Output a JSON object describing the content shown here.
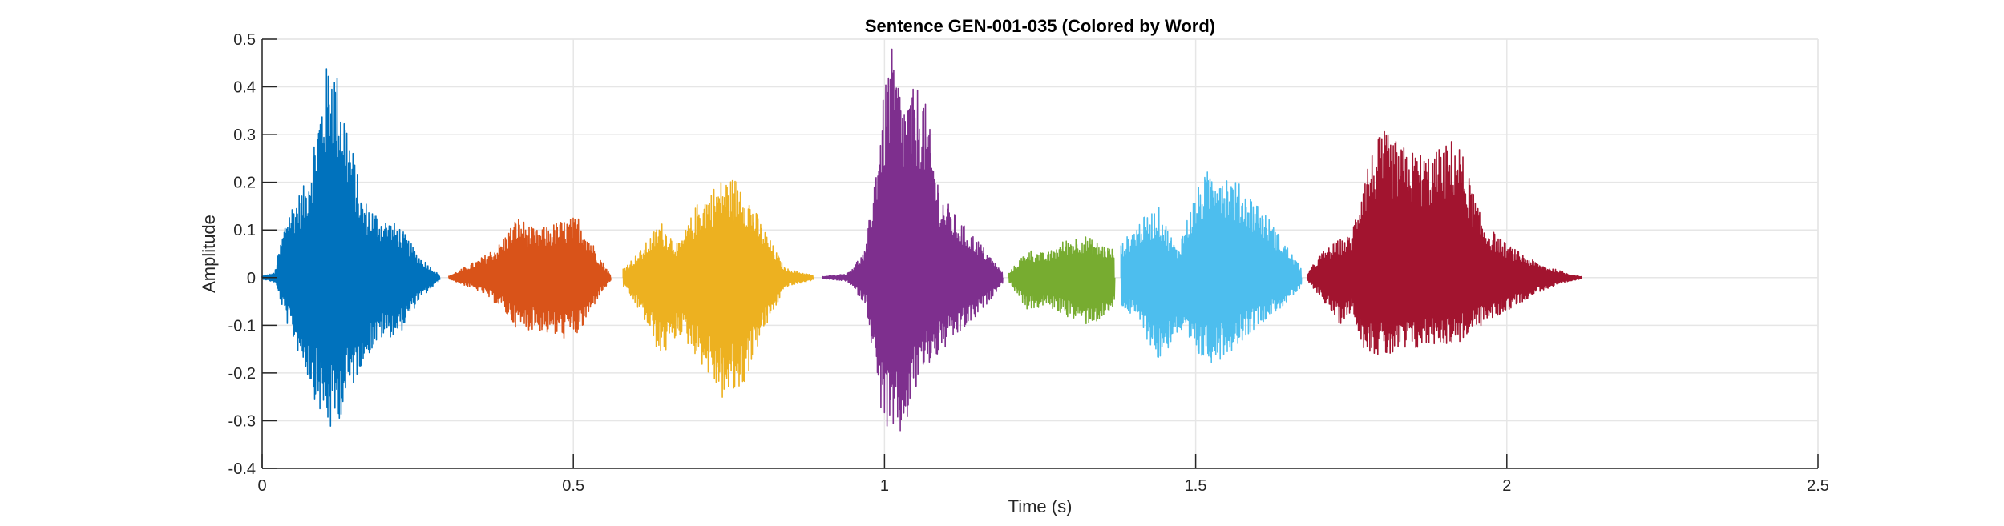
{
  "chart_data": {
    "type": "line",
    "title": "Sentence GEN-001-035 (Colored by Word)",
    "xlabel": "Time (s)",
    "ylabel": "Amplitude",
    "xlim": [
      0,
      2.5
    ],
    "ylim": [
      -0.4,
      0.5
    ],
    "xticks": [
      0,
      0.5,
      1,
      1.5,
      2,
      2.5
    ],
    "xtick_labels": [
      "0",
      "0.5",
      "1",
      "1.5",
      "2",
      "2.5"
    ],
    "yticks": [
      -0.4,
      -0.3,
      -0.2,
      -0.1,
      0,
      0.1,
      0.2,
      0.3,
      0.4,
      0.5
    ],
    "ytick_labels": [
      "-0.4",
      "-0.3",
      "-0.2",
      "-0.1",
      "0",
      "0.1",
      "0.2",
      "0.3",
      "0.4",
      "0.5"
    ],
    "grid": true,
    "series": [
      {
        "color": "#0072BD",
        "x_range": [
          0.0,
          0.285
        ],
        "envelope": [
          [
            0.0,
            0.003,
            -0.003
          ],
          [
            0.02,
            0.01,
            -0.01
          ],
          [
            0.04,
            0.14,
            -0.1
          ],
          [
            0.07,
            0.2,
            -0.2
          ],
          [
            0.09,
            0.35,
            -0.28
          ],
          [
            0.11,
            0.49,
            -0.33
          ],
          [
            0.13,
            0.38,
            -0.28
          ],
          [
            0.16,
            0.17,
            -0.18
          ],
          [
            0.19,
            0.13,
            -0.13
          ],
          [
            0.22,
            0.11,
            -0.12
          ],
          [
            0.25,
            0.05,
            -0.05
          ],
          [
            0.285,
            0.005,
            -0.005
          ]
        ]
      },
      {
        "color": "#D95319",
        "x_range": [
          0.3,
          0.56
        ],
        "envelope": [
          [
            0.3,
            0.003,
            -0.003
          ],
          [
            0.35,
            0.04,
            -0.03
          ],
          [
            0.38,
            0.07,
            -0.06
          ],
          [
            0.41,
            0.13,
            -0.11
          ],
          [
            0.44,
            0.1,
            -0.11
          ],
          [
            0.48,
            0.12,
            -0.13
          ],
          [
            0.51,
            0.13,
            -0.12
          ],
          [
            0.54,
            0.05,
            -0.04
          ],
          [
            0.56,
            0.005,
            -0.005
          ]
        ]
      },
      {
        "color": "#EDB120",
        "x_range": [
          0.58,
          0.885
        ],
        "envelope": [
          [
            0.58,
            0.02,
            -0.02
          ],
          [
            0.61,
            0.06,
            -0.08
          ],
          [
            0.64,
            0.12,
            -0.17
          ],
          [
            0.67,
            0.07,
            -0.12
          ],
          [
            0.7,
            0.16,
            -0.17
          ],
          [
            0.74,
            0.21,
            -0.26
          ],
          [
            0.77,
            0.21,
            -0.24
          ],
          [
            0.8,
            0.12,
            -0.13
          ],
          [
            0.84,
            0.02,
            -0.02
          ],
          [
            0.885,
            0.005,
            -0.005
          ]
        ]
      },
      {
        "color": "#7E2F8E",
        "x_range": [
          0.9,
          1.19
        ],
        "envelope": [
          [
            0.9,
            0.002,
            -0.002
          ],
          [
            0.94,
            0.008,
            -0.008
          ],
          [
            0.97,
            0.06,
            -0.06
          ],
          [
            0.99,
            0.3,
            -0.26
          ],
          [
            1.01,
            0.49,
            -0.36
          ],
          [
            1.03,
            0.38,
            -0.33
          ],
          [
            1.06,
            0.41,
            -0.2
          ],
          [
            1.09,
            0.18,
            -0.16
          ],
          [
            1.12,
            0.12,
            -0.12
          ],
          [
            1.15,
            0.08,
            -0.08
          ],
          [
            1.19,
            0.01,
            -0.01
          ]
        ]
      },
      {
        "color": "#77AC30",
        "x_range": [
          1.2,
          1.37
        ],
        "envelope": [
          [
            1.2,
            0.01,
            -0.01
          ],
          [
            1.23,
            0.06,
            -0.07
          ],
          [
            1.26,
            0.05,
            -0.06
          ],
          [
            1.29,
            0.08,
            -0.08
          ],
          [
            1.32,
            0.09,
            -0.1
          ],
          [
            1.35,
            0.07,
            -0.09
          ],
          [
            1.37,
            0.06,
            -0.06
          ]
        ]
      },
      {
        "color": "#4DBEEE",
        "x_range": [
          1.38,
          1.67
        ],
        "envelope": [
          [
            1.38,
            0.07,
            -0.06
          ],
          [
            1.41,
            0.12,
            -0.1
          ],
          [
            1.44,
            0.15,
            -0.18
          ],
          [
            1.47,
            0.06,
            -0.12
          ],
          [
            1.5,
            0.18,
            -0.17
          ],
          [
            1.53,
            0.25,
            -0.18
          ],
          [
            1.56,
            0.21,
            -0.15
          ],
          [
            1.6,
            0.16,
            -0.1
          ],
          [
            1.64,
            0.08,
            -0.06
          ],
          [
            1.67,
            0.02,
            -0.02
          ]
        ]
      },
      {
        "color": "#A2142F",
        "x_range": [
          1.68,
          2.12
        ],
        "envelope": [
          [
            1.68,
            0.01,
            -0.01
          ],
          [
            1.7,
            0.05,
            -0.04
          ],
          [
            1.73,
            0.08,
            -0.1
          ],
          [
            1.75,
            0.09,
            -0.07
          ],
          [
            1.77,
            0.23,
            -0.15
          ],
          [
            1.8,
            0.31,
            -0.17
          ],
          [
            1.84,
            0.27,
            -0.16
          ],
          [
            1.88,
            0.26,
            -0.14
          ],
          [
            1.92,
            0.3,
            -0.14
          ],
          [
            1.96,
            0.12,
            -0.1
          ],
          [
            2.0,
            0.07,
            -0.07
          ],
          [
            2.05,
            0.03,
            -0.03
          ],
          [
            2.1,
            0.008,
            -0.008
          ],
          [
            2.12,
            0.002,
            -0.002
          ]
        ]
      }
    ]
  }
}
